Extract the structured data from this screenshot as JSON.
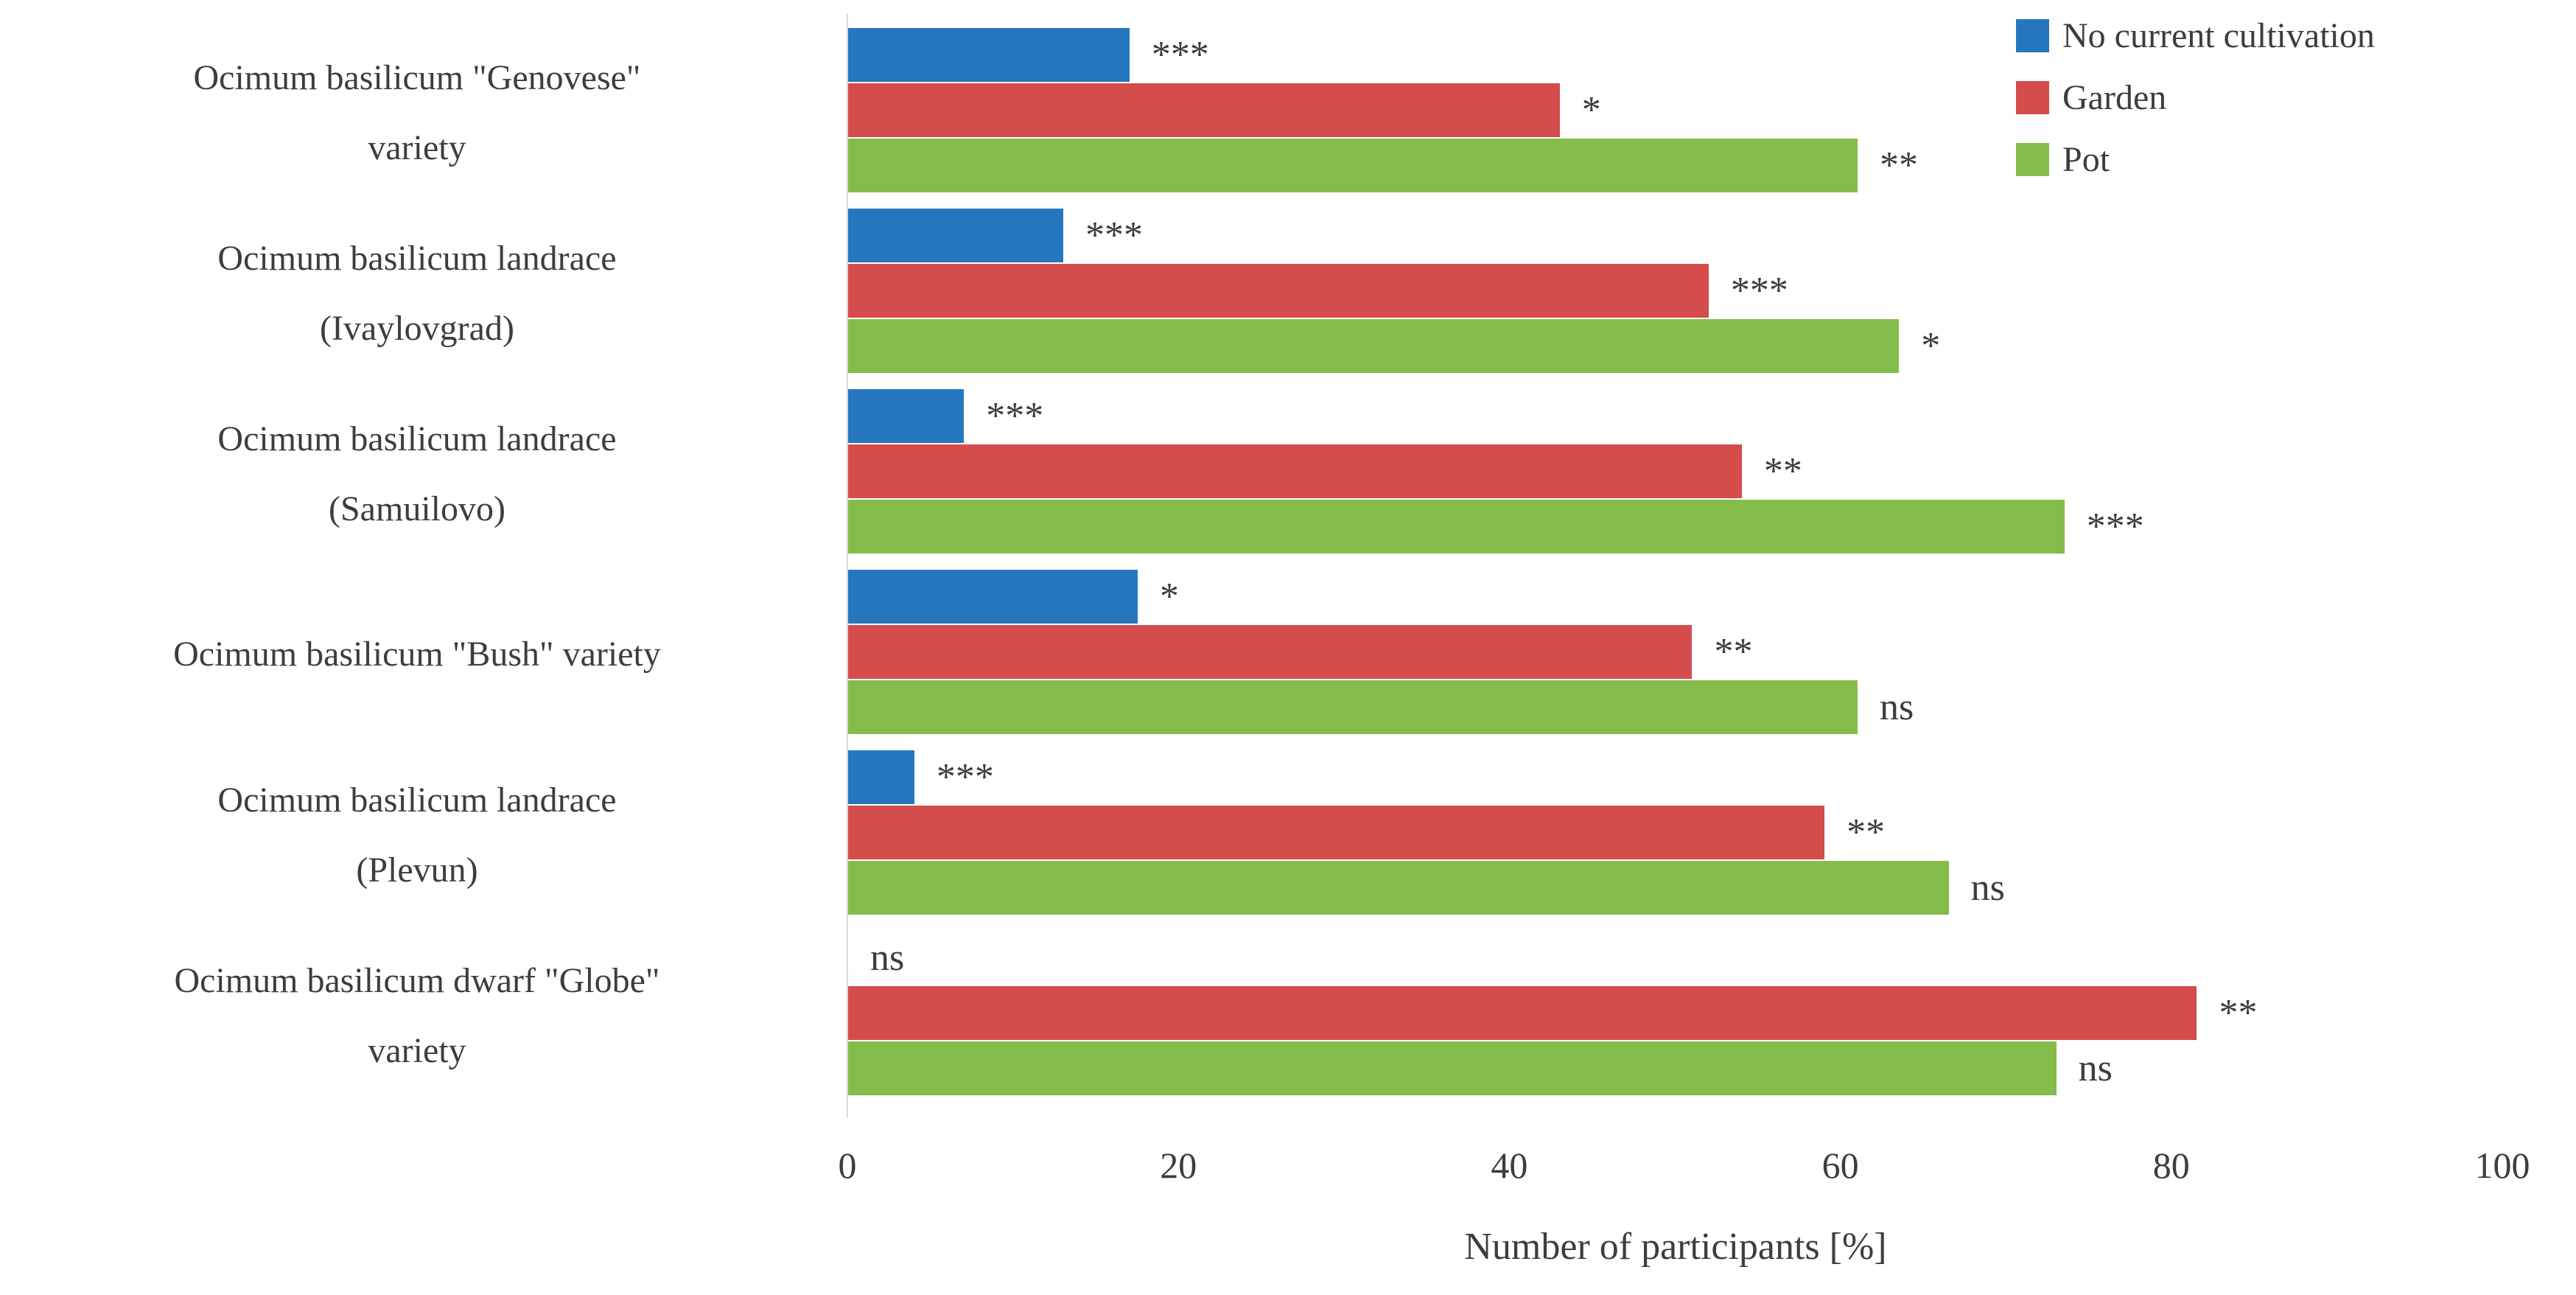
{
  "chart_data": {
    "type": "bar",
    "orientation": "horizontal",
    "xlabel": "Number of participants [%]",
    "xlim": [
      0,
      100
    ],
    "xticks": [
      0,
      20,
      40,
      60,
      80,
      100
    ],
    "grid": false,
    "legend_position": "top-right",
    "categories": [
      "Ocimum basilicum \"Genovese\" variety",
      "Ocimum basilicum landrace (Ivaylovgrad)",
      "Ocimum basilicum landrace (Samuilovo)",
      "Ocimum basilicum \"Bush\" variety",
      "Ocimum basilicum landrace (Plevun)",
      "Ocimum basilicum dwarf \"Globe\" variety"
    ],
    "category_lines": [
      [
        "Ocimum basilicum \"Genovese\"",
        "variety"
      ],
      [
        "Ocimum basilicum landrace",
        "(Ivaylovgrad)"
      ],
      [
        "Ocimum basilicum landrace",
        "(Samuilovo)"
      ],
      [
        "Ocimum basilicum \"Bush\" variety"
      ],
      [
        "Ocimum basilicum landrace",
        "(Plevun)"
      ],
      [
        "Ocimum basilicum dwarf \"Globe\"",
        "variety"
      ]
    ],
    "series": [
      {
        "name": "No current cultivation",
        "color": "#2577BD",
        "values": [
          17,
          13,
          7,
          17.5,
          4,
          0
        ],
        "annotations": [
          "***",
          "***",
          "***",
          "*",
          "***",
          "ns"
        ]
      },
      {
        "name": "Garden",
        "color": "#D54C4C",
        "values": [
          43,
          52,
          54,
          51,
          59,
          81.5
        ],
        "annotations": [
          "*",
          "***",
          "**",
          "**",
          "**",
          "**"
        ]
      },
      {
        "name": "Pot",
        "color": "#84BC4B",
        "values": [
          61,
          63.5,
          73.5,
          61,
          66.5,
          73
        ],
        "annotations": [
          "**",
          "*",
          "***",
          "ns",
          "ns",
          "ns"
        ]
      }
    ]
  }
}
